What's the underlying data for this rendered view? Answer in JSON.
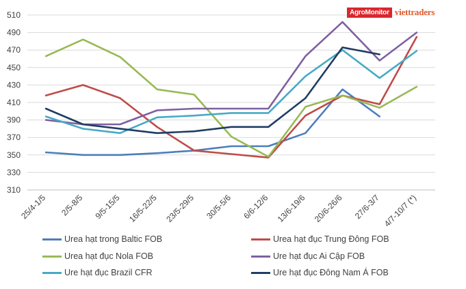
{
  "brand": {
    "agromonitor": "AgroMonitor",
    "viettraders": "viettraders"
  },
  "chart_data": {
    "type": "line",
    "title": "",
    "xlabel": "",
    "ylabel": "",
    "ylim": [
      310,
      510
    ],
    "yticks": [
      310,
      330,
      350,
      370,
      390,
      410,
      430,
      450,
      470,
      490,
      510
    ],
    "grid": true,
    "legend_position": "bottom",
    "categories": [
      "25/4-1/5",
      "2/5-8/5",
      "9/5-15/5",
      "16/5-22/5",
      "23/5-29/5",
      "30/5-5/6",
      "6/6-12/6",
      "13/6-19/6",
      "20/6-26/6",
      "27/6-3/7",
      "4/7-10/7 (*)"
    ],
    "series": [
      {
        "name": "Urea hạt trong Baltic FOB",
        "color": "#4a7ebb",
        "values": [
          353,
          350,
          350,
          352,
          355,
          360,
          360,
          375,
          425,
          394,
          null
        ]
      },
      {
        "name": "Urea hạt đục Trung Đông FOB",
        "color": "#be4b48",
        "values": [
          418,
          430,
          415,
          382,
          355,
          351,
          347,
          395,
          418,
          408,
          485
        ]
      },
      {
        "name": "Urea hạt đục Nola FOB",
        "color": "#98b954",
        "values": [
          463,
          482,
          462,
          425,
          419,
          371,
          348,
          405,
          418,
          404,
          428
        ]
      },
      {
        "name": "Ure hạt đục Ai Cập FOB",
        "color": "#7d60a0",
        "values": [
          390,
          385,
          385,
          401,
          403,
          403,
          403,
          463,
          502,
          458,
          490
        ]
      },
      {
        "name": "Ure hạt đục Brazil CFR",
        "color": "#46aac5",
        "values": [
          394,
          380,
          375,
          393,
          395,
          398,
          398,
          440,
          470,
          438,
          469
        ]
      },
      {
        "name": "Ure hạt đục Đông Nam Á FOB",
        "color": "#1f3d63",
        "values": [
          403,
          385,
          380,
          375,
          377,
          382,
          382,
          415,
          473,
          465,
          null
        ]
      }
    ]
  }
}
